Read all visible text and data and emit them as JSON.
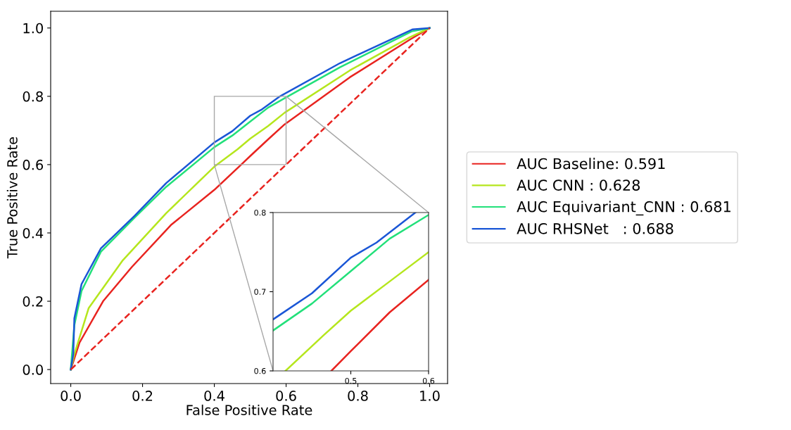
{
  "chart_data": [
    {
      "type": "line",
      "xlabel": "False Positive Rate",
      "ylabel": "True Positive Rate",
      "xlim": [
        -0.056,
        1.05
      ],
      "ylim": [
        -0.041,
        1.049
      ],
      "xticks": [
        {
          "value": 0,
          "label": "0.0"
        },
        0.2,
        0.4,
        0.6,
        0.8,
        {
          "value": 1,
          "label": "1.0"
        }
      ],
      "yticks": [
        {
          "value": 0,
          "label": "0.0"
        },
        0.2,
        0.4,
        0.6,
        0.8,
        {
          "value": 1,
          "label": "1.0"
        }
      ],
      "grid": false,
      "legend": "right",
      "line_style": "solid",
      "series": [
        {
          "name": "AUC Baseline: 0.591",
          "color": "#e8231f",
          "x": [
            0,
            0.024,
            0.09,
            0.17,
            0.279,
            0.4,
            0.475,
            0.5,
            0.55,
            0.596,
            0.778,
            0.945,
            1
          ],
          "values": [
            0,
            0.078,
            0.2,
            0.3,
            0.423,
            0.526,
            0.6,
            0.625,
            0.674,
            0.718,
            0.856,
            0.966,
            1
          ]
        },
        {
          "name": "AUC CNN : 0.628",
          "color": "#b5e61d",
          "x": [
            0,
            0.01,
            0.05,
            0.145,
            0.266,
            0.4,
            0.465,
            0.5,
            0.55,
            0.596,
            0.778,
            0.945,
            1
          ],
          "values": [
            0,
            0.045,
            0.18,
            0.32,
            0.458,
            0.594,
            0.645,
            0.676,
            0.713,
            0.752,
            0.876,
            0.973,
            1
          ]
        },
        {
          "name": "AUC Equivariant_CNN : 0.681",
          "color": "#22e07a",
          "x": [
            0,
            0.01,
            0.03,
            0.084,
            0.178,
            0.266,
            0.4,
            0.45,
            0.5,
            0.55,
            0.6,
            0.75,
            0.95,
            1
          ],
          "values": [
            0,
            0.13,
            0.23,
            0.345,
            0.445,
            0.535,
            0.651,
            0.685,
            0.726,
            0.767,
            0.797,
            0.885,
            0.99,
            1
          ]
        },
        {
          "name": "AUC RHSNet   : 0.688",
          "color": "#1a56d6",
          "x": [
            0,
            0.007,
            0.01,
            0.03,
            0.084,
            0.178,
            0.266,
            0.4,
            0.45,
            0.5,
            0.533,
            0.583,
            0.75,
            0.953,
            1
          ],
          "values": [
            0,
            0.045,
            0.15,
            0.25,
            0.355,
            0.45,
            0.546,
            0.665,
            0.698,
            0.743,
            0.762,
            0.8,
            0.897,
            0.996,
            1
          ]
        },
        {
          "color": "#e8231f",
          "line_style": "dashed",
          "x": [
            0,
            1
          ],
          "values": [
            0,
            1
          ]
        }
      ]
    },
    {
      "type": "line",
      "xlim": [
        0.4,
        0.6
      ],
      "ylim": [
        0.6,
        0.8
      ],
      "xticks": [
        0.5,
        0.6
      ],
      "yticks": [
        0.6,
        0.7,
        0.8
      ],
      "grid": false,
      "line_style": "solid",
      "series": [
        {
          "color": "#e8231f",
          "x": [
            0.475,
            0.5,
            0.55,
            0.6
          ],
          "values": [
            0.6,
            0.625,
            0.674,
            0.715
          ]
        },
        {
          "color": "#b5e61d",
          "x": [
            0.416,
            0.465,
            0.5,
            0.55,
            0.6
          ],
          "values": [
            0.6,
            0.645,
            0.676,
            0.713,
            0.75
          ]
        },
        {
          "color": "#22e07a",
          "x": [
            0.4,
            0.45,
            0.5,
            0.55,
            0.6
          ],
          "values": [
            0.651,
            0.685,
            0.726,
            0.767,
            0.797
          ]
        },
        {
          "color": "#1a56d6",
          "x": [
            0.4,
            0.45,
            0.5,
            0.533,
            0.583
          ],
          "values": [
            0.665,
            0.698,
            0.743,
            0.762,
            0.8
          ]
        }
      ]
    }
  ]
}
